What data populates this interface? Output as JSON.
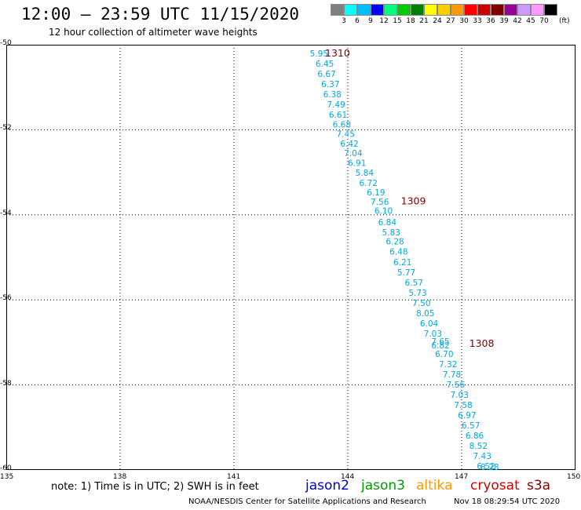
{
  "title": "12:00 – 23:59 UTC 11/15/2020",
  "subtitle": "12 hour collection of altimeter wave heights",
  "colorbar": {
    "colors": [
      "#808080",
      "#00ffff",
      "#00bfff",
      "#0000ff",
      "#00ff80",
      "#00cc00",
      "#008000",
      "#ffff00",
      "#ffcc00",
      "#ff9900",
      "#ff0000",
      "#cc0000",
      "#800000",
      "#990099",
      "#cc99ff",
      "#ff99ff",
      "#000000"
    ],
    "labels": [
      "3",
      "6",
      "9",
      "12",
      "15",
      "18",
      "21",
      "24",
      "27",
      "30",
      "33",
      "36",
      "39",
      "42",
      "45",
      "70"
    ],
    "unit": "(ft)"
  },
  "lat_ticks": [
    "-50",
    "-52",
    "-54",
    "-56",
    "-58",
    "-60"
  ],
  "lon_ticks": [
    "135",
    "138",
    "141",
    "144",
    "147",
    "150"
  ],
  "passes": [
    {
      "label": "1310",
      "lon": 143.4,
      "lat": -50.28
    },
    {
      "label": "1309",
      "lon": 145.4,
      "lat": -53.75
    },
    {
      "label": "1308",
      "lon": 147.2,
      "lat": -57.1
    }
  ],
  "track_color": "#00a8e0",
  "pass_color": "#800000",
  "chart_data": {
    "type": "scatter",
    "title": "12:00 – 23:59 UTC 11/15/2020",
    "subtitle": "12 hour collection of altimeter wave heights",
    "xlim": [
      135,
      150
    ],
    "ylim": [
      -60,
      -50
    ],
    "x_ticks": [
      "135",
      "138",
      "141",
      "144",
      "147",
      "150"
    ],
    "y_ticks": [
      "-50",
      "-52",
      "-54",
      "-56",
      "-58",
      "-60"
    ],
    "grid": true,
    "points": [
      {
        "lon": 143.0,
        "lat": -50.28,
        "swh": "5.95"
      },
      {
        "lon": 143.15,
        "lat": -50.52,
        "swh": "6.45"
      },
      {
        "lon": 143.2,
        "lat": -50.76,
        "swh": "6.67"
      },
      {
        "lon": 143.3,
        "lat": -51.0,
        "swh": "6.37"
      },
      {
        "lon": 143.35,
        "lat": -51.24,
        "swh": "6.38"
      },
      {
        "lon": 143.45,
        "lat": -51.48,
        "swh": "7.49"
      },
      {
        "lon": 143.5,
        "lat": -51.72,
        "swh": "6.61"
      },
      {
        "lon": 143.6,
        "lat": -51.95,
        "swh": "6.68"
      },
      {
        "lon": 143.7,
        "lat": -52.17,
        "swh": "7.45"
      },
      {
        "lon": 143.8,
        "lat": -52.4,
        "swh": "6.42"
      },
      {
        "lon": 143.9,
        "lat": -52.62,
        "swh": "7.04"
      },
      {
        "lon": 144.0,
        "lat": -52.85,
        "swh": "6.91"
      },
      {
        "lon": 144.2,
        "lat": -53.08,
        "swh": "5.84"
      },
      {
        "lon": 144.3,
        "lat": -53.32,
        "swh": "6.72"
      },
      {
        "lon": 144.5,
        "lat": -53.54,
        "swh": "6.19"
      },
      {
        "lon": 144.6,
        "lat": -53.76,
        "swh": "7.56"
      },
      {
        "lon": 144.7,
        "lat": -53.98,
        "swh": "6.10"
      },
      {
        "lon": 144.8,
        "lat": -54.24,
        "swh": "6.84"
      },
      {
        "lon": 144.9,
        "lat": -54.48,
        "swh": "5.83"
      },
      {
        "lon": 145.0,
        "lat": -54.7,
        "swh": "6.28"
      },
      {
        "lon": 145.1,
        "lat": -54.94,
        "swh": "6.48"
      },
      {
        "lon": 145.2,
        "lat": -55.18,
        "swh": "6.21"
      },
      {
        "lon": 145.3,
        "lat": -55.42,
        "swh": "5.77"
      },
      {
        "lon": 145.5,
        "lat": -55.66,
        "swh": "6.57"
      },
      {
        "lon": 145.6,
        "lat": -55.9,
        "swh": "5.73"
      },
      {
        "lon": 145.7,
        "lat": -56.14,
        "swh": "7.50"
      },
      {
        "lon": 145.8,
        "lat": -56.38,
        "swh": "8.05"
      },
      {
        "lon": 145.9,
        "lat": -56.62,
        "swh": "6.04"
      },
      {
        "lon": 146.0,
        "lat": -56.86,
        "swh": "7.03"
      },
      {
        "lon": 146.2,
        "lat": -57.05,
        "swh": "7.65"
      },
      {
        "lon": 146.2,
        "lat": -57.14,
        "swh": "6.82"
      },
      {
        "lon": 146.3,
        "lat": -57.34,
        "swh": "6.70"
      },
      {
        "lon": 146.4,
        "lat": -57.58,
        "swh": "7.32"
      },
      {
        "lon": 146.5,
        "lat": -57.82,
        "swh": "7.78"
      },
      {
        "lon": 146.6,
        "lat": -58.06,
        "swh": "7.56"
      },
      {
        "lon": 146.7,
        "lat": -58.3,
        "swh": "7.03"
      },
      {
        "lon": 146.8,
        "lat": -58.54,
        "swh": "7.58"
      },
      {
        "lon": 146.9,
        "lat": -58.78,
        "swh": "6.97"
      },
      {
        "lon": 147.0,
        "lat": -59.02,
        "swh": "6.57"
      },
      {
        "lon": 147.1,
        "lat": -59.26,
        "swh": "6.86"
      },
      {
        "lon": 147.2,
        "lat": -59.5,
        "swh": "8.52"
      },
      {
        "lon": 147.3,
        "lat": -59.74,
        "swh": "7.43"
      },
      {
        "lon": 147.4,
        "lat": -59.98,
        "swh": "6.52"
      },
      {
        "lon": 147.5,
        "lat": -60.0,
        "swh": "8.28"
      }
    ]
  },
  "note": "note: 1) Time is in UTC; 2) SWH is in feet",
  "satellites": [
    {
      "name": "jason2",
      "color": "#0000cc"
    },
    {
      "name": "jason3",
      "color": "#009900"
    },
    {
      "name": "altika",
      "color": "#ff9900"
    },
    {
      "name": "cryosat",
      "color": "#cc0000"
    },
    {
      "name": "s3a",
      "color": "#800000"
    }
  ],
  "credit": "NOAA/NESDIS Center for Satellite Applications and Research",
  "timestamp": "Nov 18 08:29:54 UTC 2020"
}
